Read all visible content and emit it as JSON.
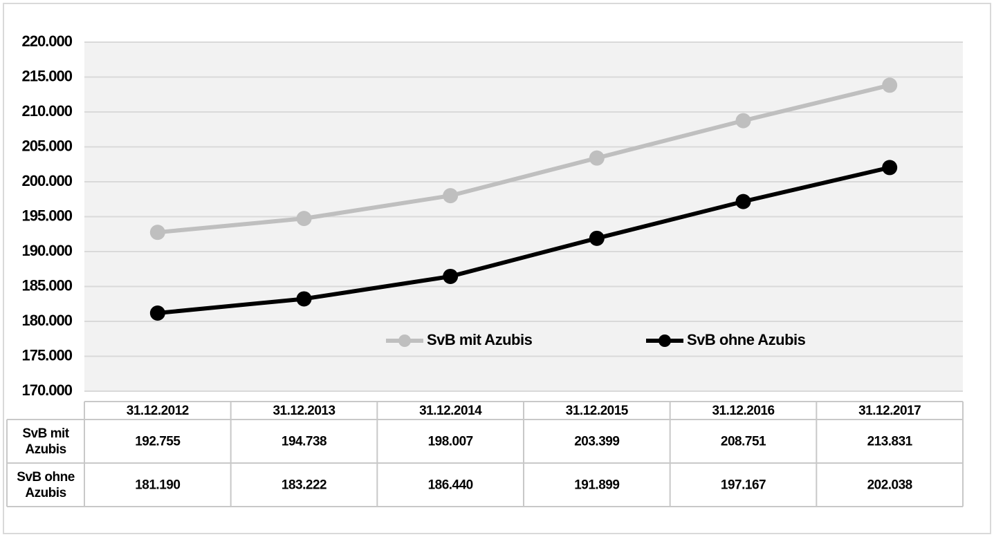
{
  "chart_data": {
    "type": "line",
    "categories": [
      "31.12.2012",
      "31.12.2013",
      "31.12.2014",
      "31.12.2015",
      "31.12.2016",
      "31.12.2017"
    ],
    "series": [
      {
        "name": "SvB mit Azubis",
        "color": "#bfbfbf",
        "values": [
          192755,
          194738,
          198007,
          203399,
          208751,
          213831
        ],
        "value_labels": [
          "192.755",
          "194.738",
          "198.007",
          "203.399",
          "208.751",
          "213.831"
        ]
      },
      {
        "name": "SvB ohne Azubis",
        "color": "#000000",
        "values": [
          181190,
          183222,
          186440,
          191899,
          197167,
          202038
        ],
        "value_labels": [
          "181.190",
          "183.222",
          "186.440",
          "191.899",
          "197.167",
          "202.038"
        ]
      }
    ],
    "ylim": [
      170000,
      220000
    ],
    "yticks": [
      {
        "value": 170000,
        "label": "170.000"
      },
      {
        "value": 175000,
        "label": "175.000"
      },
      {
        "value": 180000,
        "label": "180.000"
      },
      {
        "value": 185000,
        "label": "185.000"
      },
      {
        "value": 190000,
        "label": "190.000"
      },
      {
        "value": 195000,
        "label": "195.000"
      },
      {
        "value": 200000,
        "label": "200.000"
      },
      {
        "value": 205000,
        "label": "205.000"
      },
      {
        "value": 210000,
        "label": "210.000"
      },
      {
        "value": 215000,
        "label": "215.000"
      },
      {
        "value": 220000,
        "label": "220.000"
      }
    ],
    "grid": true,
    "data_table": true
  }
}
